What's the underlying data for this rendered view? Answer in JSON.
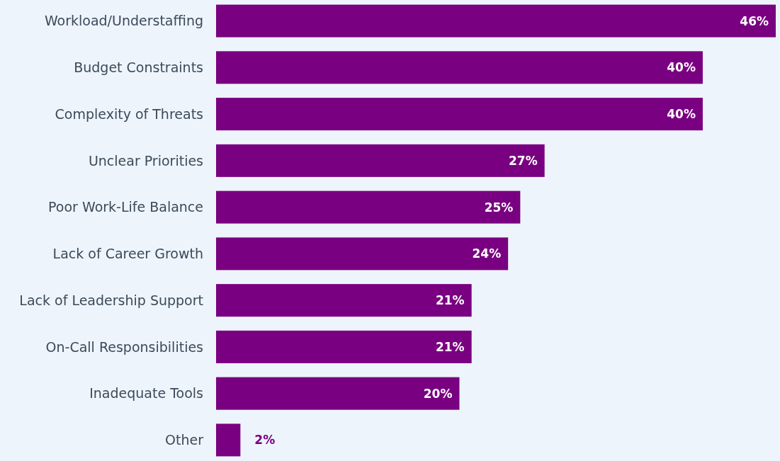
{
  "chart_data": {
    "type": "bar",
    "orientation": "horizontal",
    "categories": [
      "Workload/Understaffing",
      "Budget Constraints",
      "Complexity of Threats",
      "Unclear Priorities",
      "Poor Work-Life Balance",
      "Lack of Career Growth",
      "Lack of Leadership Support",
      "On-Call Responsibilities",
      "Inadequate Tools",
      "Other"
    ],
    "values": [
      46,
      40,
      40,
      27,
      25,
      24,
      21,
      21,
      20,
      2
    ],
    "value_labels": [
      "46%",
      "40%",
      "40%",
      "27%",
      "25%",
      "24%",
      "21%",
      "21%",
      "20%",
      "2%"
    ],
    "color": "#790080"
  }
}
